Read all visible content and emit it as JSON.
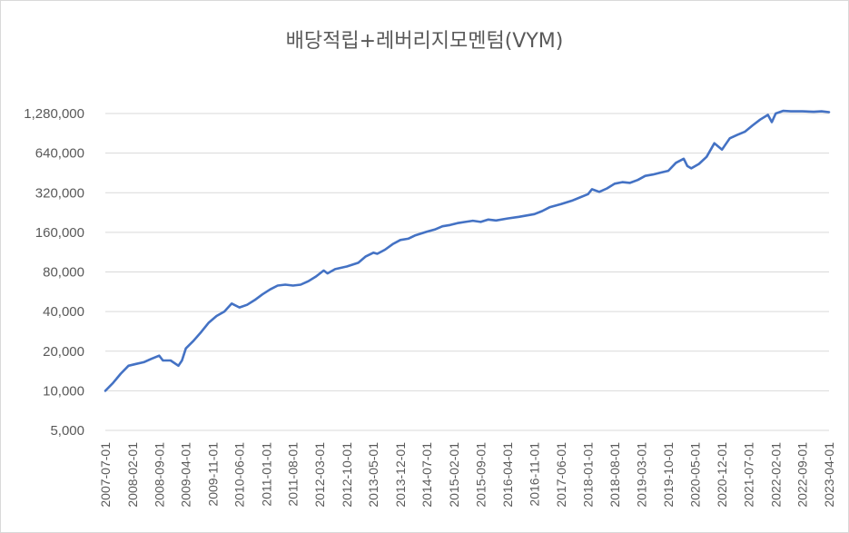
{
  "chart_data": {
    "type": "line",
    "title": "배당적립+레버리지모멘텀(VYM)",
    "xlabel": "",
    "ylabel": "",
    "y_scale": "log2",
    "ylim": [
      5000,
      1280000
    ],
    "grid": true,
    "legend": "none",
    "y_ticks": [
      {
        "value": 5000,
        "label": "5,000"
      },
      {
        "value": 10000,
        "label": "10,000"
      },
      {
        "value": 20000,
        "label": "20,000"
      },
      {
        "value": 40000,
        "label": "40,000"
      },
      {
        "value": 80000,
        "label": "80,000"
      },
      {
        "value": 160000,
        "label": "160,000"
      },
      {
        "value": 320000,
        "label": "320,000"
      },
      {
        "value": 640000,
        "label": "640,000"
      },
      {
        "value": 1280000,
        "label": "1,280,000"
      }
    ],
    "x_tick_labels": [
      "2007-07-01",
      "2008-02-01",
      "2008-09-01",
      "2009-04-01",
      "2009-11-01",
      "2010-06-01",
      "2011-01-01",
      "2011-08-01",
      "2012-03-01",
      "2012-10-01",
      "2013-05-01",
      "2013-12-01",
      "2014-07-01",
      "2015-02-01",
      "2015-09-01",
      "2016-04-01",
      "2016-11-01",
      "2017-06-01",
      "2018-01-01",
      "2018-08-01",
      "2019-03-01",
      "2019-10-01",
      "2020-05-01",
      "2020-12-01",
      "2021-07-01",
      "2022-02-01",
      "2022-09-01",
      "2023-04-01"
    ],
    "colors": {
      "line": "#4472c4",
      "grid": "#d9d9d9",
      "text": "#595959"
    },
    "series": [
      {
        "points": [
          [
            "2007-07-01",
            10000
          ],
          [
            "2007-09-01",
            11500
          ],
          [
            "2007-11-01",
            13500
          ],
          [
            "2008-01-01",
            15500
          ],
          [
            "2008-03-01",
            16000
          ],
          [
            "2008-05-01",
            16500
          ],
          [
            "2008-07-01",
            17500
          ],
          [
            "2008-09-01",
            18500
          ],
          [
            "2008-10-01",
            17000
          ],
          [
            "2008-12-01",
            17000
          ],
          [
            "2009-02-01",
            15500
          ],
          [
            "2009-03-01",
            17000
          ],
          [
            "2009-04-01",
            21000
          ],
          [
            "2009-06-01",
            24000
          ],
          [
            "2009-08-01",
            28000
          ],
          [
            "2009-10-01",
            33000
          ],
          [
            "2009-12-01",
            37000
          ],
          [
            "2010-02-01",
            40000
          ],
          [
            "2010-04-01",
            46000
          ],
          [
            "2010-06-01",
            43000
          ],
          [
            "2010-08-01",
            45000
          ],
          [
            "2010-10-01",
            49000
          ],
          [
            "2010-12-01",
            54000
          ],
          [
            "2011-02-01",
            59000
          ],
          [
            "2011-04-01",
            63000
          ],
          [
            "2011-06-01",
            64000
          ],
          [
            "2011-08-01",
            63000
          ],
          [
            "2011-10-01",
            64000
          ],
          [
            "2011-12-01",
            68000
          ],
          [
            "2012-02-01",
            74000
          ],
          [
            "2012-04-01",
            82000
          ],
          [
            "2012-05-01",
            78000
          ],
          [
            "2012-07-01",
            84000
          ],
          [
            "2012-10-01",
            88000
          ],
          [
            "2013-01-01",
            94000
          ],
          [
            "2013-03-01",
            105000
          ],
          [
            "2013-05-01",
            112000
          ],
          [
            "2013-06-01",
            110000
          ],
          [
            "2013-08-01",
            118000
          ],
          [
            "2013-10-01",
            130000
          ],
          [
            "2013-12-01",
            140000
          ],
          [
            "2014-02-01",
            143000
          ],
          [
            "2014-04-01",
            152000
          ],
          [
            "2014-07-01",
            162000
          ],
          [
            "2014-09-01",
            168000
          ],
          [
            "2014-11-01",
            178000
          ],
          [
            "2015-01-01",
            182000
          ],
          [
            "2015-03-01",
            188000
          ],
          [
            "2015-05-01",
            192000
          ],
          [
            "2015-07-01",
            196000
          ],
          [
            "2015-09-01",
            192000
          ],
          [
            "2015-11-01",
            200000
          ],
          [
            "2016-01-01",
            197000
          ],
          [
            "2016-04-01",
            204000
          ],
          [
            "2016-07-01",
            210000
          ],
          [
            "2016-11-01",
            220000
          ],
          [
            "2017-01-01",
            232000
          ],
          [
            "2017-03-01",
            248000
          ],
          [
            "2017-06-01",
            262000
          ],
          [
            "2017-09-01",
            280000
          ],
          [
            "2018-01-01",
            312000
          ],
          [
            "2018-02-01",
            340000
          ],
          [
            "2018-04-01",
            325000
          ],
          [
            "2018-06-01",
            345000
          ],
          [
            "2018-08-01",
            375000
          ],
          [
            "2018-10-01",
            385000
          ],
          [
            "2018-12-01",
            380000
          ],
          [
            "2019-02-01",
            400000
          ],
          [
            "2019-04-01",
            430000
          ],
          [
            "2019-06-01",
            440000
          ],
          [
            "2019-08-01",
            455000
          ],
          [
            "2019-10-01",
            470000
          ],
          [
            "2019-12-01",
            540000
          ],
          [
            "2020-02-01",
            580000
          ],
          [
            "2020-03-01",
            510000
          ],
          [
            "2020-04-01",
            490000
          ],
          [
            "2020-06-01",
            530000
          ],
          [
            "2020-08-01",
            600000
          ],
          [
            "2020-10-01",
            760000
          ],
          [
            "2020-12-01",
            680000
          ],
          [
            "2021-02-01",
            830000
          ],
          [
            "2021-04-01",
            880000
          ],
          [
            "2021-06-01",
            930000
          ],
          [
            "2021-08-01",
            1040000
          ],
          [
            "2021-10-01",
            1150000
          ],
          [
            "2021-12-01",
            1250000
          ],
          [
            "2022-01-01",
            1100000
          ],
          [
            "2022-02-01",
            1280000
          ],
          [
            "2022-04-01",
            1340000
          ],
          [
            "2022-06-01",
            1330000
          ],
          [
            "2022-09-01",
            1330000
          ],
          [
            "2022-12-01",
            1320000
          ],
          [
            "2023-02-01",
            1330000
          ],
          [
            "2023-04-01",
            1310000
          ]
        ]
      }
    ]
  }
}
